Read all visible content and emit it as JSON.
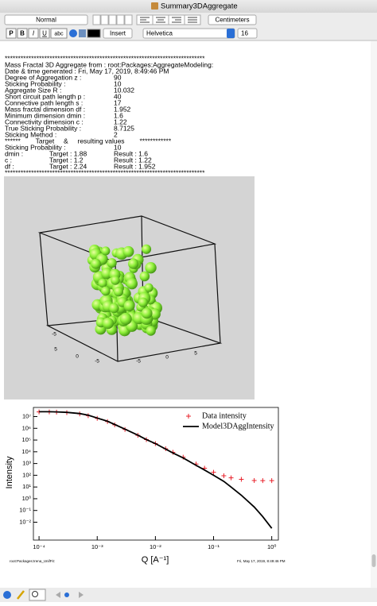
{
  "window": {
    "title": "Summary3DAggregate"
  },
  "toolbar": {
    "style": "Normal",
    "units": "Centimeters",
    "insert": "Insert",
    "font": "Helvetica",
    "size": "16",
    "buttons": [
      "P",
      "B",
      "I",
      "U",
      "abc"
    ]
  },
  "notebook": {
    "intro": [
      "****************************************************************************",
      "Mass Fractal 3D Aggregate from : root:Packages:AggregateModeling:",
      "Date & time generated : Fri, May 17, 2019, 8:49:46 PM"
    ],
    "params": [
      [
        "Degree of Aggregation z :",
        "90"
      ],
      [
        "Sticking Probability :",
        "10"
      ],
      [
        "Aggregate Size R :",
        "10.032"
      ],
      [
        "Short circuit path length p :",
        "40"
      ],
      [
        "Connective path length s :",
        "17"
      ],
      [
        "Mass fractal dimension df :",
        "1.952"
      ],
      [
        "Minimum dimension dmin :",
        "1.6"
      ],
      [
        "Connectivity dimension c :",
        "1.22"
      ],
      [
        "True Sticking Probability :",
        "8.7125"
      ],
      [
        "Sticking Method :",
        "2"
      ]
    ],
    "header": "******        Target     &     resulting values        ************",
    "params2": [
      [
        "Sticking Probability :",
        "10"
      ]
    ],
    "results": [
      [
        "dmin :",
        "Target : 1.88",
        "Result : 1.6"
      ],
      [
        "c :",
        "Target : 1.2",
        "Result : 1.22"
      ],
      [
        "df :",
        "Target : 2.24",
        "Result : 1.952"
      ]
    ],
    "closing": "****************************************************************************"
  },
  "image": {
    "axis_labels": [
      "-5",
      "5",
      "0",
      "-5",
      "-5",
      "0",
      "5"
    ]
  },
  "chart_data": {
    "type": "line",
    "xscale": "log",
    "yscale": "log",
    "x_label": "Q [A⁻¹]",
    "y_label": "Intensity",
    "annotations": [
      "root:Packages:Irena_UnifFit:",
      "Fri, May 17, 2019, 8:49:46 PM"
    ],
    "x": [
      0.0001,
      0.00015,
      0.0002,
      0.0003,
      0.0005,
      0.0007,
      0.001,
      0.0015,
      0.002,
      0.003,
      0.005,
      0.007,
      0.01,
      0.015,
      0.02,
      0.03,
      0.05,
      0.07,
      0.1,
      0.15,
      0.2,
      0.3,
      0.5,
      0.7,
      1
    ],
    "series": [
      {
        "name": "Data intensity",
        "color": "#e8202a",
        "marker": "plus",
        "values": [
          25000000,
          25000000,
          24000000,
          22000000,
          17000000,
          12000000,
          7000000,
          3800000,
          2000000,
          800000,
          250000,
          110000,
          50000,
          18000,
          9000,
          3500,
          900,
          400,
          180,
          90,
          60,
          45,
          36,
          35,
          35
        ]
      },
      {
        "name": "Model3DAggIntensity",
        "color": "#000000",
        "marker": "none",
        "values": [
          26000000,
          26000000,
          25000000,
          23000000,
          18000000,
          13000000,
          7500000,
          4000000,
          2100000,
          850000,
          260000,
          110000,
          50000,
          17000,
          8000,
          3000,
          700,
          280,
          100,
          30,
          10,
          2,
          0.2,
          0.03,
          0.003
        ]
      }
    ],
    "xlim": [
      8e-05,
      1.3
    ],
    "ylim": [
      0.0003,
      60000000
    ],
    "xticks": [
      {
        "value": 0.0001,
        "label": "10⁻⁴"
      },
      {
        "value": 0.001,
        "label": "10⁻³"
      },
      {
        "value": 0.01,
        "label": "10⁻²"
      },
      {
        "value": 0.1,
        "label": "10⁻¹"
      },
      {
        "value": 1,
        "label": "10⁰"
      }
    ],
    "yticks": [
      {
        "value": 10000000,
        "label": "10⁷"
      },
      {
        "value": 1000000,
        "label": "10⁶"
      },
      {
        "value": 100000,
        "label": "10⁵"
      },
      {
        "value": 10000,
        "label": "10⁴"
      },
      {
        "value": 1000,
        "label": "10³"
      },
      {
        "value": 100,
        "label": "10²"
      },
      {
        "value": 10,
        "label": "10¹"
      },
      {
        "value": 1,
        "label": "10⁰"
      },
      {
        "value": 0.1,
        "label": "10⁻¹"
      },
      {
        "value": 0.01,
        "label": "10⁻²"
      }
    ],
    "legend": "upper right",
    "grid": false
  }
}
